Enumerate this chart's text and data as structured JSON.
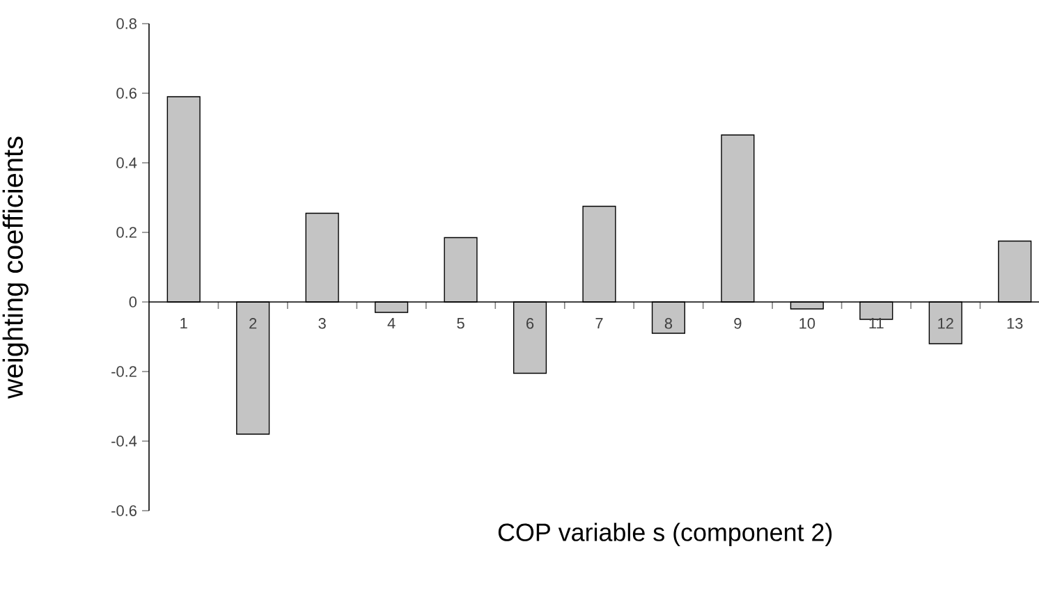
{
  "chart_data": {
    "type": "bar",
    "xlabel": "COP variable s (component 2)",
    "ylabel": "weighting coefficients",
    "categories": [
      "1",
      "2",
      "3",
      "4",
      "5",
      "6",
      "7",
      "8",
      "9",
      "10",
      "11",
      "12",
      "13"
    ],
    "values": [
      0.59,
      -0.38,
      0.255,
      -0.03,
      0.185,
      -0.205,
      0.275,
      -0.09,
      0.48,
      -0.02,
      -0.05,
      -0.12,
      0.175
    ],
    "color": "#c4c4c4",
    "ylim": [
      -0.6,
      0.8
    ],
    "yticks": [
      -0.6,
      -0.4,
      -0.2,
      0,
      0.2,
      0.4,
      0.6,
      0.8
    ]
  }
}
